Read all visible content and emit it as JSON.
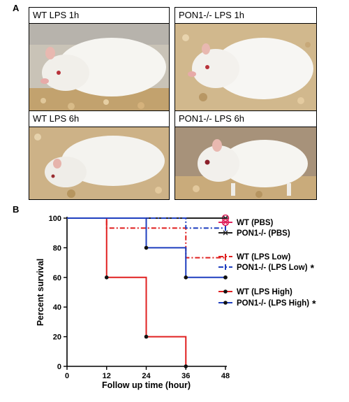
{
  "panels": {
    "a": {
      "letter": "A",
      "photos": [
        {
          "label": "WT LPS 1h"
        },
        {
          "label": "PON1-/- LPS 1h"
        },
        {
          "label": "WT LPS 6h"
        },
        {
          "label": "PON1-/- LPS 6h"
        }
      ]
    },
    "b": {
      "letter": "B"
    }
  },
  "chart_data": {
    "type": "line",
    "step": true,
    "title": "",
    "xlabel": "Follow up time (hour)",
    "ylabel": "Percent survival",
    "xlim": [
      0,
      48
    ],
    "ylim": [
      0,
      100
    ],
    "xticks": [
      0,
      12,
      24,
      36,
      48
    ],
    "yticks": [
      0,
      20,
      40,
      60,
      80,
      100
    ],
    "legend_position": "right",
    "series": [
      {
        "name": "WT (PBS)",
        "color": "#e0245e",
        "style": "solid",
        "marker": "circle-x",
        "points": [
          [
            0,
            100
          ],
          [
            48,
            100
          ]
        ],
        "censored": [
          48
        ],
        "significant": false
      },
      {
        "name": "PON1-/- (PBS)",
        "color": "#222222",
        "style": "solid",
        "marker": "asterisk",
        "points": [
          [
            0,
            100
          ],
          [
            48,
            100
          ]
        ],
        "censored": [
          48
        ],
        "significant": false
      },
      {
        "name": "WT (LPS Low)",
        "color": "#e02020",
        "style": "dashdot",
        "marker": "tick",
        "points": [
          [
            0,
            100
          ],
          [
            12,
            93.3
          ],
          [
            36,
            73.3
          ],
          [
            48,
            73.3
          ]
        ],
        "censored": [
          48
        ],
        "significant": false
      },
      {
        "name": "PON1-/- (LPS Low)",
        "color": "#1f3fbf",
        "style": "dashdot",
        "marker": "tick",
        "points": [
          [
            0,
            100
          ],
          [
            36,
            93.3
          ],
          [
            48,
            93.3
          ]
        ],
        "censored": [
          48
        ],
        "significant": true
      },
      {
        "name": "WT (LPS High)",
        "color": "#e02020",
        "style": "solid",
        "marker": "dot",
        "points": [
          [
            0,
            100
          ],
          [
            12,
            60
          ],
          [
            24,
            20
          ],
          [
            36,
            0
          ]
        ],
        "censored": [],
        "significant": false
      },
      {
        "name": "PON1-/- (LPS High)",
        "color": "#1f3fbf",
        "style": "solid",
        "marker": "dot",
        "points": [
          [
            0,
            100
          ],
          [
            24,
            80
          ],
          [
            36,
            60
          ],
          [
            48,
            60
          ]
        ],
        "censored": [
          48
        ],
        "significant": true
      }
    ],
    "significance_mark": "*"
  }
}
